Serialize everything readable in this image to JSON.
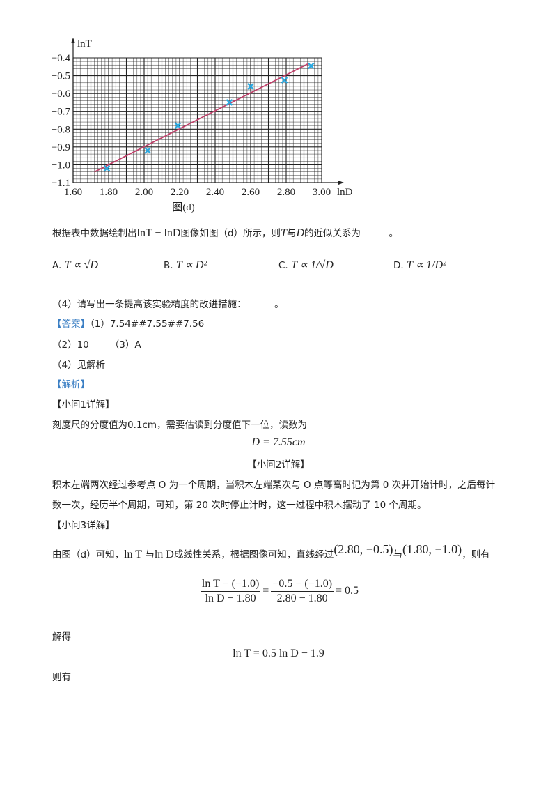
{
  "chart_data": {
    "type": "scatter",
    "caption": "图(d)",
    "xlabel": "lnD",
    "ylabel": "lnT",
    "xlim": [
      1.6,
      3.0
    ],
    "ylim": [
      -1.1,
      -0.4
    ],
    "x_ticks": [
      "1.60",
      "1.80",
      "2.00",
      "2.20",
      "2.40",
      "2.60",
      "2.80",
      "3.00"
    ],
    "y_ticks": [
      "-0.4",
      "-0.5",
      "-0.6",
      "-0.7",
      "-0.8",
      "-0.9",
      "-1.0",
      "-1.1"
    ],
    "grid": true,
    "points": [
      {
        "x": 1.79,
        "y": -1.02
      },
      {
        "x": 2.02,
        "y": -0.92
      },
      {
        "x": 2.19,
        "y": -0.78
      },
      {
        "x": 2.48,
        "y": -0.65
      },
      {
        "x": 2.6,
        "y": -0.56
      },
      {
        "x": 2.79,
        "y": -0.525
      },
      {
        "x": 2.94,
        "y": -0.445
      }
    ],
    "fit_line": [
      {
        "x": 1.72,
        "y": -1.04
      },
      {
        "x": 2.93,
        "y": -0.43
      }
    ],
    "colors": {
      "points": "#29a8e0",
      "line": "#c0406a",
      "grid": "#222222"
    }
  },
  "question": {
    "prefix": "根据表中数据绘制出",
    "expr": "lnT − lnD",
    "suffix": "图像如图（d）所示，则",
    "t": "T",
    "mid": "与",
    "d": "D",
    "end": "的近似关系为______。",
    "options": [
      {
        "label": "A.",
        "math": "T ∝ √D"
      },
      {
        "label": "B.",
        "math": "T ∝ D²"
      },
      {
        "label": "C.",
        "math": "T ∝ 1/√D"
      },
      {
        "label": "D.",
        "math": "T ∝ 1/D²"
      }
    ],
    "q4": "（4）请写出一条提高该实验精度的改进措施：______。"
  },
  "answer": {
    "tag": "【答案】",
    "a1": "（1）7.54##7.55##7.56",
    "a2": "（2）10",
    "a3": "（3）A",
    "a4": "（4）见解析"
  },
  "analysis": {
    "tag": "【解析】",
    "s1_title": "【小问1详解】",
    "s1_text": "刻度尺的分度值为0.1cm，需要估读到分度值下一位，读数为",
    "s1_eq": "D = 7.55cm",
    "s2_title": "【小问2详解】",
    "s2_text1": "积木左端两次经过参考点 O 为一个周期，当积木左端某次与 O 点等高时记为第 0 次并开始计时，之后每计",
    "s2_text2": "数一次，经历半个周期，可知，第 20 次时停止计时，这一过程中积木摆动了 10 个周期。",
    "s3_title": "【小问3详解】",
    "s3_text_a": "由图（d）可知，",
    "s3_lnT": "ln T",
    "s3_and": "与",
    "s3_lnD": "ln D",
    "s3_text_b": "成线性关系，根据图像可知，直线经过",
    "s3_p1": "(2.80, −0.5)",
    "s3_p2": "(1.80, −1.0)",
    "s3_text_c": "，则有",
    "eq_num1": "ln T − (−1.0)",
    "eq_den1": "ln D − 1.80",
    "eq_num2": "−0.5 − (−1.0)",
    "eq_den2": "2.80 − 1.80",
    "eq_result": "= 0.5",
    "solve": "解得",
    "eq2": "ln T = 0.5 ln D − 1.9",
    "then": "则有"
  }
}
